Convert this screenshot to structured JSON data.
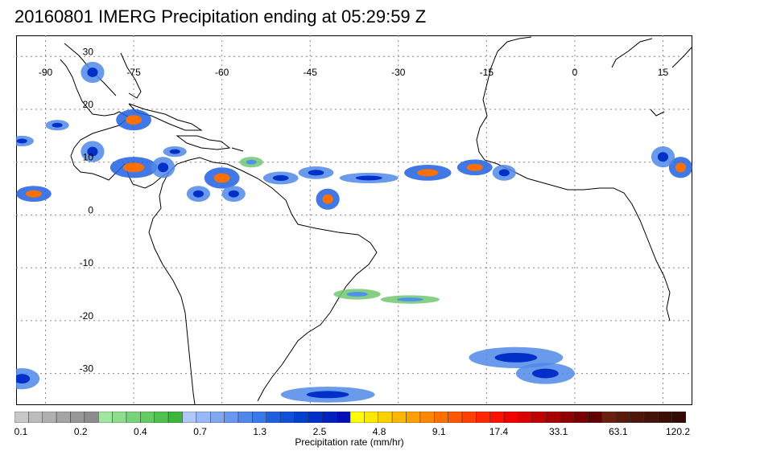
{
  "title": "20160801 IMERG Precipitation ending at 05:29:59 Z",
  "map": {
    "lon_range": [
      -95,
      20
    ],
    "lat_range": [
      -36,
      34
    ],
    "lon_ticks": [
      "-90",
      "-75",
      "-60",
      "-45",
      "-30",
      "-15",
      "0",
      "15"
    ],
    "lat_ticks": [
      "30",
      "20",
      "10",
      "0",
      "-10",
      "-20",
      "-30"
    ],
    "gridlines": true
  },
  "colorbar": {
    "title": "Precipitation rate (mm/hr)",
    "labels": [
      "0.1",
      "0.2",
      "0.4",
      "0.7",
      "1.3",
      "2.5",
      "4.8",
      "9.1",
      "17.4",
      "33.1",
      "63.1",
      "120.2"
    ],
    "colors": [
      "#c8c8c8",
      "#bcbcbc",
      "#b0b0b0",
      "#a4a4a4",
      "#989898",
      "#8c8c8c",
      "#a0e8a0",
      "#8cde8c",
      "#78d478",
      "#64ca64",
      "#50c050",
      "#3cb63c",
      "#b0c8f8",
      "#98b8f8",
      "#80a8f0",
      "#6898f0",
      "#5088e8",
      "#3878e8",
      "#2060e0",
      "#1050d8",
      "#0040d0",
      "#0030c8",
      "#0020c0",
      "#0010b8",
      "#ffff00",
      "#ffe800",
      "#ffd000",
      "#ffb800",
      "#ffa000",
      "#ff8800",
      "#ff7000",
      "#ff5800",
      "#ff4000",
      "#ff2800",
      "#ff1000",
      "#f00000",
      "#d80000",
      "#c00000",
      "#a80000",
      "#900000",
      "#780000",
      "#600000",
      "#6a2010",
      "#5a1a0c",
      "#4e160a",
      "#441208",
      "#3c0e06",
      "#340a04"
    ]
  }
}
